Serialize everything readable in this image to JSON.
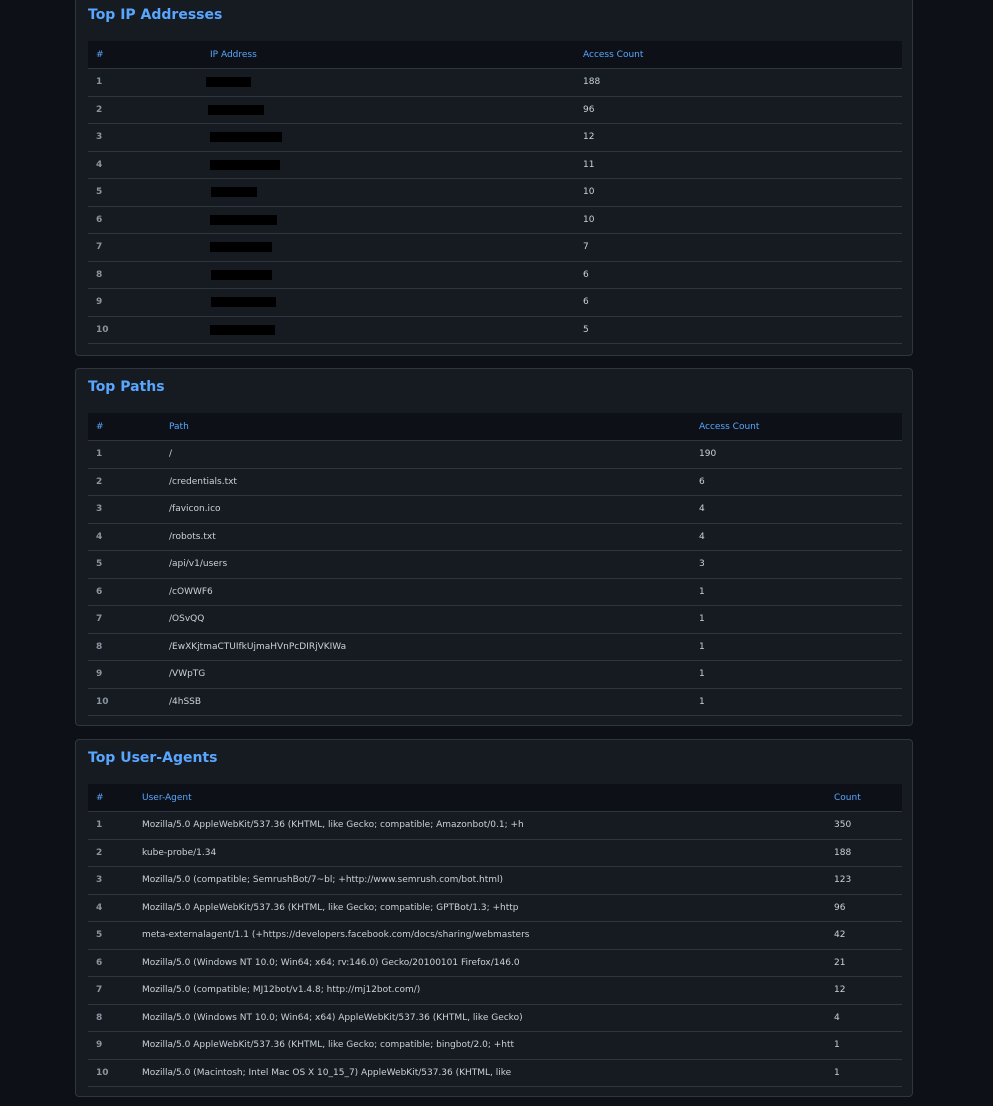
{
  "ip_section": {
    "title": "Top IP Addresses",
    "headers": [
      "#",
      "IP Address",
      "Access Count"
    ],
    "rows": [
      {
        "rank": "1",
        "count": "188"
      },
      {
        "rank": "2",
        "count": "96"
      },
      {
        "rank": "3",
        "count": "12"
      },
      {
        "rank": "4",
        "count": "11"
      },
      {
        "rank": "5",
        "count": "10"
      },
      {
        "rank": "6",
        "count": "10"
      },
      {
        "rank": "7",
        "count": "7"
      },
      {
        "rank": "8",
        "count": "6"
      },
      {
        "rank": "9",
        "count": "6"
      },
      {
        "rank": "10",
        "count": "5"
      }
    ]
  },
  "paths_section": {
    "title": "Top Paths",
    "headers": [
      "#",
      "Path",
      "Access Count"
    ],
    "rows": [
      {
        "rank": "1",
        "path": "/",
        "count": "190"
      },
      {
        "rank": "2",
        "path": "/credentials.txt",
        "count": "6"
      },
      {
        "rank": "3",
        "path": "/favicon.ico",
        "count": "4"
      },
      {
        "rank": "4",
        "path": "/robots.txt",
        "count": "4"
      },
      {
        "rank": "5",
        "path": "/api/v1/users",
        "count": "3"
      },
      {
        "rank": "6",
        "path": "/cOWWF6",
        "count": "1"
      },
      {
        "rank": "7",
        "path": "/OSvQQ",
        "count": "1"
      },
      {
        "rank": "8",
        "path": "/EwXKjtmaCTUIfkUjmaHVnPcDIRjVKIWa",
        "count": "1"
      },
      {
        "rank": "9",
        "path": "/VWpTG",
        "count": "1"
      },
      {
        "rank": "10",
        "path": "/4hSSB",
        "count": "1"
      }
    ]
  },
  "ua_section": {
    "title": "Top User-Agents",
    "headers": [
      "#",
      "User-Agent",
      "Count"
    ],
    "rows": [
      {
        "rank": "1",
        "ua": "Mozilla/5.0 AppleWebKit/537.36 (KHTML, like Gecko; compatible; Amazonbot/0.1; +h",
        "count": "350"
      },
      {
        "rank": "2",
        "ua": "kube-probe/1.34",
        "count": "188"
      },
      {
        "rank": "3",
        "ua": "Mozilla/5.0 (compatible; SemrushBot/7~bl; +http://www.semrush.com/bot.html)",
        "count": "123"
      },
      {
        "rank": "4",
        "ua": "Mozilla/5.0 AppleWebKit/537.36 (KHTML, like Gecko; compatible; GPTBot/1.3; +http",
        "count": "96"
      },
      {
        "rank": "5",
        "ua": "meta-externalagent/1.1 (+https://developers.facebook.com/docs/sharing/webmasters",
        "count": "42"
      },
      {
        "rank": "6",
        "ua": "Mozilla/5.0 (Windows NT 10.0; Win64; x64; rv:146.0) Gecko/20100101 Firefox/146.0",
        "count": "21"
      },
      {
        "rank": "7",
        "ua": "Mozilla/5.0 (compatible; MJ12bot/v1.4.8; http://mj12bot.com/)",
        "count": "12"
      },
      {
        "rank": "8",
        "ua": "Mozilla/5.0 (Windows NT 10.0; Win64; x64) AppleWebKit/537.36 (KHTML, like Gecko)",
        "count": "4"
      },
      {
        "rank": "9",
        "ua": "Mozilla/5.0 AppleWebKit/537.36 (KHTML, like Gecko; compatible; bingbot/2.0; +htt",
        "count": "1"
      },
      {
        "rank": "10",
        "ua": "Mozilla/5.0 (Macintosh; Intel Mac OS X 10_15_7) AppleWebKit/537.36 (KHTML, like",
        "count": "1"
      }
    ]
  }
}
